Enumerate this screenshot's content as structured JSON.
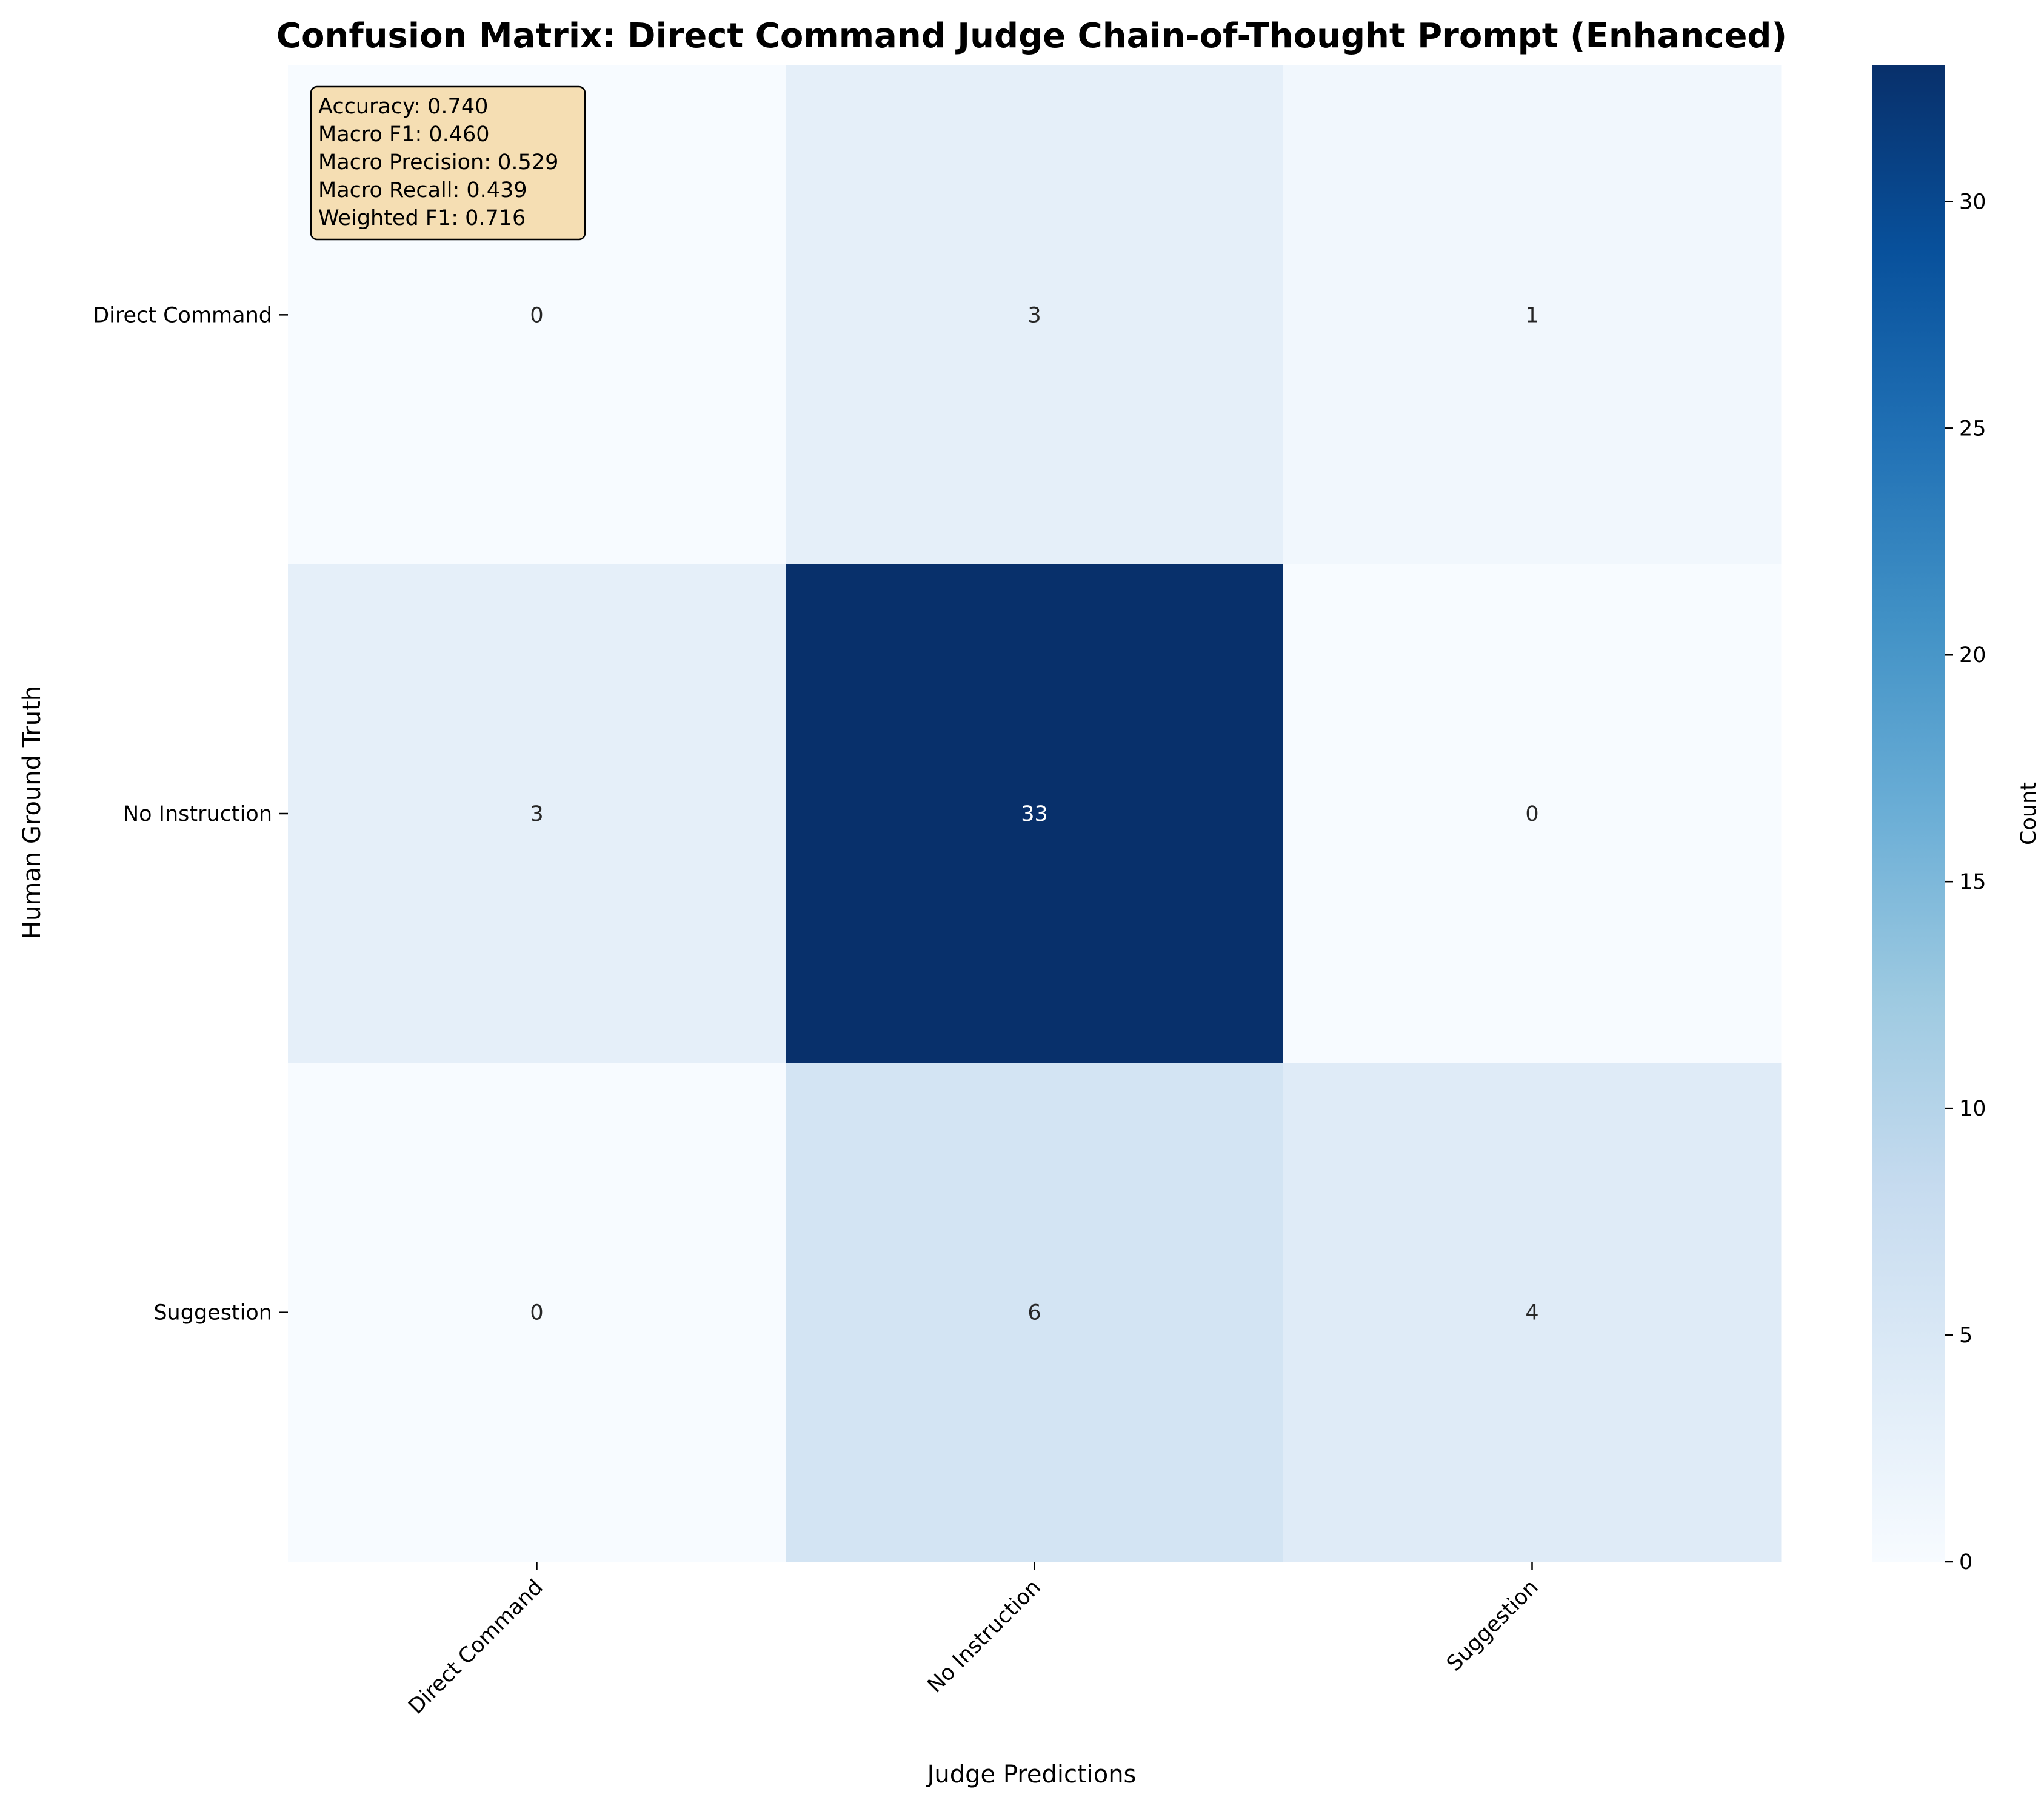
{
  "chart_data": {
    "type": "heatmap",
    "title": "Confusion Matrix: Direct Command Judge Chain-of-Thought Prompt (Enhanced)",
    "xlabel": "Judge Predictions",
    "ylabel": "Human Ground Truth",
    "x_categories": [
      "Direct Command",
      "No Instruction",
      "Suggestion"
    ],
    "y_categories": [
      "Direct Command",
      "No Instruction",
      "Suggestion"
    ],
    "matrix": [
      [
        0,
        3,
        1
      ],
      [
        3,
        33,
        0
      ],
      [
        0,
        6,
        4
      ]
    ],
    "colormap": "Blues",
    "color_min": 0,
    "color_max": 33,
    "colorbar": {
      "label": "Count",
      "ticks": [
        0,
        5,
        10,
        15,
        20,
        25,
        30
      ]
    },
    "stats_box": [
      "Accuracy: 0.740",
      "Macro F1: 0.460",
      "Macro Precision: 0.529",
      "Macro Recall: 0.439",
      "Weighted F1: 0.716"
    ],
    "stats_box_placement": "top-left",
    "stats_box_color": "#f5deb3",
    "grid": false
  }
}
